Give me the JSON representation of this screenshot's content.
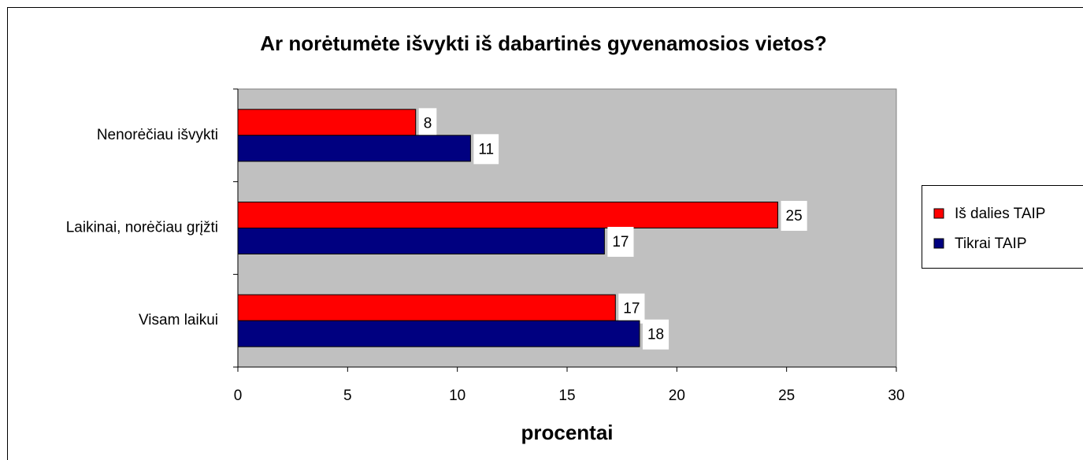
{
  "chart_data": {
    "type": "hbar",
    "title": "Ar norėtumėte išvykti iš dabartinės gyvenamosios vietos?",
    "x_label": "procentai",
    "categories": [
      "Nenorėčiau išvykti",
      "Laikinai, norėčiau grįžti",
      "Visam laikui"
    ],
    "series": [
      {
        "name": "Iš dalies TAIP",
        "color": "#ff0000",
        "values": [
          8.1,
          24.6,
          17.2
        ],
        "value_labels": [
          "8",
          "25",
          "17"
        ]
      },
      {
        "name": "Tikrai TAIP",
        "color": "#000080",
        "values": [
          10.6,
          16.7,
          18.3
        ],
        "value_labels": [
          "11",
          "17",
          "18"
        ]
      }
    ],
    "xlim": [
      0,
      30
    ],
    "xticks": [
      0,
      5,
      10,
      15,
      20,
      25,
      30
    ],
    "grid": false,
    "legend": "right",
    "plot_background": "#c0c0c0"
  }
}
